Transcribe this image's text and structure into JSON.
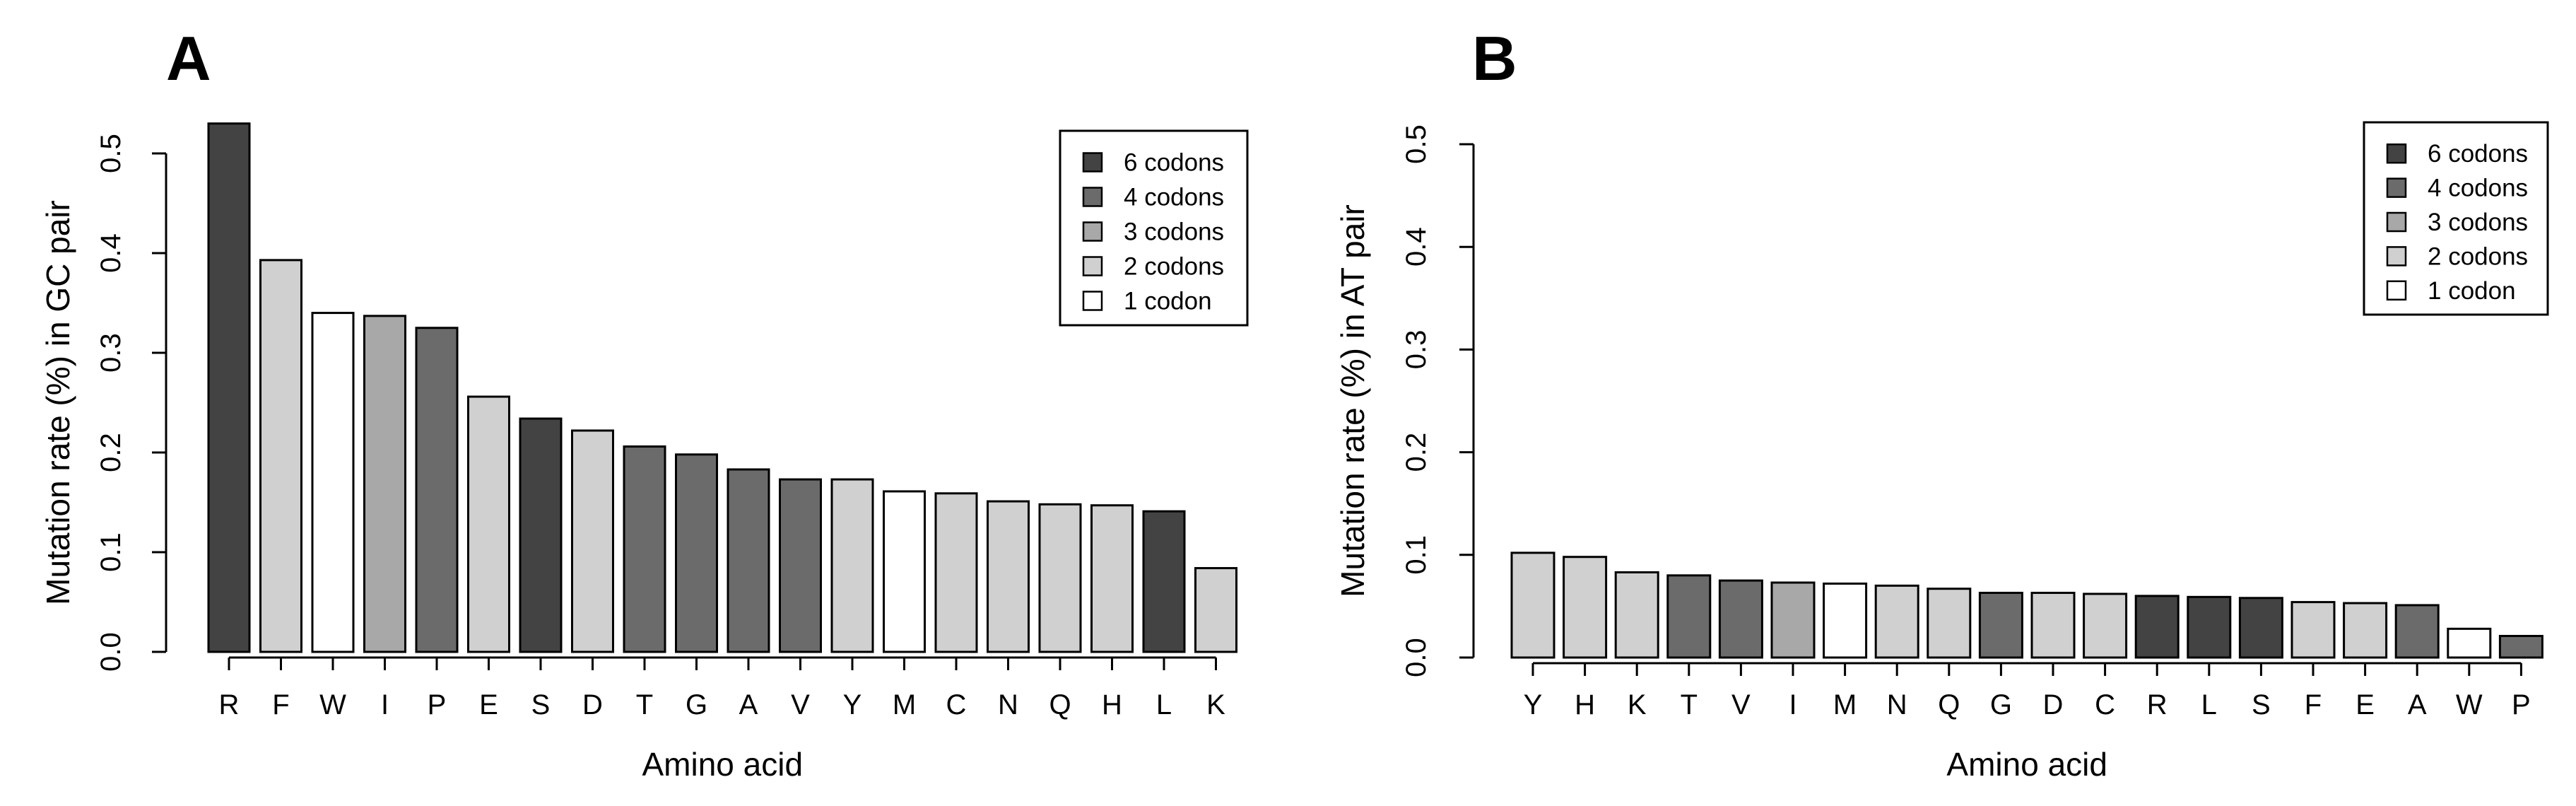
{
  "colors": {
    "6 codons": "#434343",
    "4 codons": "#6b6b6b",
    "3 codons": "#a8a8a8",
    "2 codons": "#d0d0d0",
    "1 codon": "#ffffff"
  },
  "chart_data": [
    {
      "type": "bar",
      "panel": "A",
      "xlabel": "Amino acid",
      "ylabel": "Mutation rate (%) in GC pair",
      "ylim": [
        0,
        0.5
      ],
      "yticks": [
        "0.0",
        "0.1",
        "0.2",
        "0.3",
        "0.4",
        "0.5"
      ],
      "legend": [
        "6 codons",
        "4 codons",
        "3 codons",
        "2 codons",
        "1 codon"
      ],
      "legend_position": "top-right",
      "categories": [
        "R",
        "F",
        "W",
        "I",
        "P",
        "E",
        "S",
        "D",
        "T",
        "G",
        "A",
        "V",
        "Y",
        "M",
        "C",
        "N",
        "Q",
        "H",
        "L",
        "K"
      ],
      "values": [
        0.53,
        0.393,
        0.34,
        0.337,
        0.325,
        0.256,
        0.234,
        0.222,
        0.206,
        0.198,
        0.183,
        0.173,
        0.173,
        0.161,
        0.159,
        0.151,
        0.148,
        0.147,
        0.141,
        0.084
      ],
      "codon_groups": [
        "6 codons",
        "2 codons",
        "1 codon",
        "3 codons",
        "4 codons",
        "2 codons",
        "6 codons",
        "2 codons",
        "4 codons",
        "4 codons",
        "4 codons",
        "4 codons",
        "2 codons",
        "1 codon",
        "2 codons",
        "2 codons",
        "2 codons",
        "2 codons",
        "6 codons",
        "2 codons"
      ]
    },
    {
      "type": "bar",
      "panel": "B",
      "xlabel": "Amino acid",
      "ylabel": "Mutation rate (%) in AT pair",
      "ylim": [
        0,
        0.5
      ],
      "yticks": [
        "0.0",
        "0.1",
        "0.2",
        "0.3",
        "0.4",
        "0.5"
      ],
      "legend": [
        "6 codons",
        "4 codons",
        "3 codons",
        "2 codons",
        "1 codon"
      ],
      "legend_position": "top-right",
      "categories": [
        "Y",
        "H",
        "K",
        "T",
        "V",
        "I",
        "M",
        "N",
        "Q",
        "G",
        "D",
        "C",
        "R",
        "L",
        "S",
        "F",
        "E",
        "A",
        "W",
        "P"
      ],
      "values": [
        0.102,
        0.098,
        0.083,
        0.08,
        0.075,
        0.073,
        0.072,
        0.07,
        0.067,
        0.063,
        0.063,
        0.062,
        0.06,
        0.059,
        0.058,
        0.054,
        0.053,
        0.051,
        0.028,
        0.021
      ],
      "codon_groups": [
        "2 codons",
        "2 codons",
        "2 codons",
        "4 codons",
        "4 codons",
        "3 codons",
        "1 codon",
        "2 codons",
        "2 codons",
        "4 codons",
        "2 codons",
        "2 codons",
        "6 codons",
        "6 codons",
        "6 codons",
        "2 codons",
        "2 codons",
        "4 codons",
        "1 codon",
        "4 codons"
      ]
    }
  ]
}
